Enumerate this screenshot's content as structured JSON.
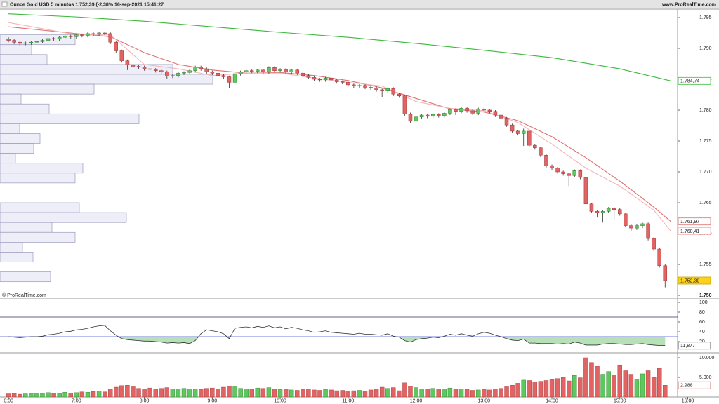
{
  "header": {
    "title": "Ounce Gold USD 5 minutos 1.752,39 (-2,38% 16-sep-2021 15:41:27",
    "site": "www.ProRealTime.com",
    "watermark": "© ProRealTime.com"
  },
  "chart_data": {
    "type": "candlestick",
    "xlim": [
      352.5,
      951
    ],
    "xticks": [
      {
        "value": 360,
        "label": "6:00"
      },
      {
        "value": 420,
        "label": "7:00"
      },
      {
        "value": 480,
        "label": "8:00"
      },
      {
        "value": 540,
        "label": "9:00"
      },
      {
        "value": 600,
        "label": "10:00"
      },
      {
        "value": 660,
        "label": "11:00"
      },
      {
        "value": 720,
        "label": "12:00"
      },
      {
        "value": 780,
        "label": "13:00"
      },
      {
        "value": 840,
        "label": "14:00"
      },
      {
        "value": 900,
        "label": "15:00"
      },
      {
        "value": 960,
        "label": "16:00"
      }
    ],
    "ylim": [
      1749.55,
      1796.25
    ],
    "yticks": [
      {
        "value": 1795,
        "label": "1.795"
      },
      {
        "value": 1790,
        "label": "1.790"
      },
      {
        "value": 1785,
        "label": "1.785"
      },
      {
        "value": 1780,
        "label": "1.780"
      },
      {
        "value": 1775,
        "label": "1.775"
      },
      {
        "value": 1770,
        "label": "1.770"
      },
      {
        "value": 1765,
        "label": "1.765"
      },
      {
        "value": 1760,
        "label": "1.760"
      },
      {
        "value": 1755,
        "label": "1.755"
      },
      {
        "value": 1750,
        "label": "1.750"
      }
    ],
    "up_color": "#5ec85e",
    "down_color": "#e06464",
    "x": [
      360,
      365,
      370,
      375,
      380,
      385,
      390,
      395,
      400,
      405,
      410,
      415,
      420,
      425,
      430,
      435,
      440,
      445,
      450,
      455,
      460,
      465,
      470,
      475,
      480,
      485,
      490,
      495,
      500,
      505,
      510,
      515,
      520,
      525,
      530,
      535,
      540,
      545,
      550,
      555,
      560,
      565,
      570,
      575,
      580,
      585,
      590,
      595,
      600,
      605,
      610,
      615,
      620,
      625,
      630,
      635,
      640,
      645,
      650,
      655,
      660,
      665,
      670,
      675,
      680,
      685,
      690,
      695,
      700,
      705,
      710,
      715,
      720,
      725,
      730,
      735,
      740,
      745,
      750,
      755,
      760,
      765,
      770,
      775,
      780,
      785,
      790,
      795,
      800,
      805,
      810,
      815,
      820,
      825,
      830,
      835,
      840,
      845,
      850,
      855,
      860,
      865,
      870,
      875,
      880,
      885,
      890,
      895,
      900,
      905,
      910,
      915,
      920,
      925,
      930,
      935,
      940
    ],
    "open": [
      1791.5,
      1791.3,
      1791.0,
      1790.8,
      1790.9,
      1791.0,
      1791.1,
      1791.3,
      1791.6,
      1791.5,
      1791.8,
      1792.0,
      1791.9,
      1792.2,
      1792.1,
      1792.4,
      1792.3,
      1792.5,
      1792.4,
      1791.0,
      1789.6,
      1788.0,
      1787.3,
      1787.1,
      1787.0,
      1786.7,
      1786.6,
      1786.4,
      1786.2,
      1785.5,
      1785.6,
      1786.0,
      1786.1,
      1786.4,
      1787.0,
      1786.7,
      1786.2,
      1786.0,
      1785.6,
      1785.4,
      1784.5,
      1785.9,
      1786.2,
      1786.4,
      1786.3,
      1786.5,
      1786.2,
      1786.9,
      1786.4,
      1786.6,
      1786.2,
      1786.5,
      1786.0,
      1785.6,
      1785.3,
      1785.0,
      1784.9,
      1785.2,
      1784.9,
      1784.6,
      1784.5,
      1784.1,
      1783.9,
      1784.0,
      1783.7,
      1783.6,
      1783.3,
      1783.1,
      1783.5,
      1782.6,
      1782.3,
      1779.4,
      1778.2,
      1778.9,
      1779.2,
      1779.0,
      1779.3,
      1779.1,
      1779.5,
      1780.1,
      1779.8,
      1780.3,
      1779.9,
      1779.5,
      1780.2,
      1780.0,
      1779.8,
      1779.2,
      1778.7,
      1777.6,
      1776.6,
      1776.2,
      1776.6,
      1774.3,
      1773.9,
      1772.7,
      1771.0,
      1770.6,
      1770.0,
      1769.7,
      1769.4,
      1770.2,
      1769.1,
      1764.8,
      1763.6,
      1763.4,
      1763.6,
      1764.1,
      1763.9,
      1763.2,
      1761.3,
      1760.9,
      1761.3,
      1761.6,
      1759.2,
      1757.5,
      1754.8
    ],
    "high": [
      1791.8,
      1791.5,
      1791.2,
      1791.1,
      1791.2,
      1791.3,
      1791.5,
      1791.8,
      1791.8,
      1792.0,
      1792.2,
      1792.2,
      1792.4,
      1792.4,
      1792.6,
      1792.6,
      1792.7,
      1792.7,
      1792.6,
      1791.2,
      1789.8,
      1788.2,
      1787.5,
      1787.3,
      1787.2,
      1786.9,
      1786.8,
      1786.6,
      1786.4,
      1785.8,
      1786.2,
      1786.3,
      1786.6,
      1787.2,
      1787.2,
      1786.9,
      1786.4,
      1786.2,
      1785.8,
      1785.6,
      1786.1,
      1786.4,
      1786.6,
      1786.6,
      1786.7,
      1786.7,
      1787.1,
      1787.1,
      1786.8,
      1786.8,
      1786.7,
      1786.7,
      1786.2,
      1785.8,
      1785.5,
      1785.2,
      1785.4,
      1785.4,
      1785.1,
      1784.8,
      1784.7,
      1784.3,
      1784.2,
      1784.2,
      1783.9,
      1783.8,
      1783.5,
      1783.7,
      1783.7,
      1782.8,
      1782.5,
      1779.6,
      1779.1,
      1779.4,
      1779.4,
      1779.5,
      1779.5,
      1779.7,
      1780.3,
      1780.3,
      1780.5,
      1780.5,
      1780.1,
      1780.4,
      1780.4,
      1780.2,
      1780.0,
      1779.4,
      1778.9,
      1777.8,
      1776.8,
      1777.0,
      1776.8,
      1774.5,
      1774.1,
      1772.9,
      1771.2,
      1770.8,
      1770.2,
      1769.9,
      1770.4,
      1770.4,
      1769.3,
      1765.0,
      1763.8,
      1763.8,
      1764.3,
      1764.3,
      1764.1,
      1763.4,
      1761.5,
      1761.5,
      1761.8,
      1761.8,
      1759.4,
      1757.7,
      1755.0
    ],
    "low": [
      1791.0,
      1790.7,
      1790.5,
      1790.5,
      1790.6,
      1790.7,
      1790.8,
      1791.0,
      1791.2,
      1791.2,
      1791.5,
      1791.6,
      1791.6,
      1791.8,
      1791.8,
      1792.0,
      1792.0,
      1792.1,
      1790.7,
      1789.3,
      1787.7,
      1786.5,
      1786.8,
      1786.7,
      1786.4,
      1786.3,
      1786.1,
      1785.9,
      1785.0,
      1785.2,
      1785.3,
      1785.7,
      1785.8,
      1786.1,
      1786.4,
      1785.9,
      1785.7,
      1785.3,
      1785.1,
      1783.6,
      1784.2,
      1785.6,
      1785.9,
      1786.0,
      1786.0,
      1785.9,
      1785.9,
      1786.1,
      1786.1,
      1785.9,
      1785.9,
      1785.7,
      1785.3,
      1785.0,
      1784.7,
      1784.6,
      1784.6,
      1784.6,
      1784.3,
      1784.2,
      1783.8,
      1783.6,
      1783.6,
      1783.4,
      1783.3,
      1783.0,
      1782.1,
      1782.8,
      1782.3,
      1782.0,
      1779.1,
      1777.9,
      1775.7,
      1778.6,
      1778.7,
      1778.7,
      1778.8,
      1778.8,
      1779.2,
      1779.2,
      1779.5,
      1779.6,
      1779.2,
      1779.2,
      1779.7,
      1779.5,
      1778.9,
      1778.4,
      1777.3,
      1776.3,
      1775.9,
      1774.2,
      1774.0,
      1773.6,
      1772.4,
      1770.7,
      1770.3,
      1769.7,
      1769.4,
      1767.7,
      1769.1,
      1768.8,
      1764.5,
      1763.3,
      1762.6,
      1761.8,
      1763.3,
      1762.3,
      1762.9,
      1761.0,
      1760.4,
      1760.6,
      1760.9,
      1758.9,
      1757.2,
      1754.5,
      1751.3
    ],
    "close": [
      1791.3,
      1791.0,
      1790.8,
      1790.9,
      1791.0,
      1791.1,
      1791.3,
      1791.6,
      1791.5,
      1791.8,
      1792.0,
      1791.9,
      1792.2,
      1792.1,
      1792.4,
      1792.3,
      1792.5,
      1792.4,
      1791.0,
      1789.6,
      1788.0,
      1787.3,
      1787.1,
      1787.0,
      1786.7,
      1786.6,
      1786.4,
      1786.2,
      1785.5,
      1785.6,
      1786.0,
      1786.1,
      1786.4,
      1787.0,
      1786.7,
      1786.2,
      1786.0,
      1785.6,
      1785.4,
      1784.5,
      1785.9,
      1786.2,
      1786.4,
      1786.3,
      1786.5,
      1786.2,
      1786.9,
      1786.4,
      1786.6,
      1786.2,
      1786.5,
      1786.0,
      1785.6,
      1785.3,
      1785.0,
      1784.9,
      1785.2,
      1784.9,
      1784.6,
      1784.5,
      1784.1,
      1783.9,
      1784.0,
      1783.7,
      1783.6,
      1783.3,
      1783.1,
      1783.5,
      1782.6,
      1782.3,
      1779.4,
      1778.2,
      1778.9,
      1779.2,
      1779.0,
      1779.3,
      1779.1,
      1779.5,
      1780.1,
      1779.8,
      1780.3,
      1779.9,
      1779.5,
      1780.2,
      1780.0,
      1779.8,
      1779.2,
      1778.7,
      1777.6,
      1776.6,
      1776.2,
      1776.6,
      1774.3,
      1773.9,
      1772.7,
      1771.0,
      1770.6,
      1770.0,
      1769.7,
      1769.4,
      1770.2,
      1769.1,
      1764.8,
      1763.6,
      1763.4,
      1763.6,
      1764.1,
      1763.9,
      1763.2,
      1761.3,
      1760.9,
      1761.3,
      1761.6,
      1759.2,
      1757.5,
      1754.8,
      1752.39
    ],
    "current": {
      "value": 1752.39,
      "label": "1.752,39"
    },
    "series": [
      {
        "color": "#3cb83c",
        "x": [
          360,
          420,
          480,
          540,
          600,
          660,
          720,
          780,
          840,
          900,
          945
        ],
        "values": [
          1795.6,
          1795.1,
          1794.4,
          1793.5,
          1792.6,
          1791.8,
          1790.8,
          1789.7,
          1788.5,
          1786.7,
          1784.74
        ],
        "last_label": "1.784,74"
      },
      {
        "color": "#e07070",
        "x": [
          360,
          420,
          450,
          480,
          510,
          540,
          570,
          600,
          630,
          660,
          690,
          720,
          750,
          780,
          810,
          840,
          870,
          900,
          930,
          945
        ],
        "values": [
          1793.5,
          1792.4,
          1791.9,
          1789.3,
          1787.4,
          1786.5,
          1786.0,
          1786.1,
          1785.6,
          1784.8,
          1783.6,
          1781.9,
          1780.2,
          1779.7,
          1778.3,
          1775.7,
          1772.3,
          1768.5,
          1764.3,
          1761.97
        ],
        "last_label": "1.761,97"
      },
      {
        "color": "#f4b4b8",
        "x": [
          360,
          420,
          450,
          480,
          510,
          540,
          570,
          600,
          630,
          660,
          690,
          720,
          750,
          780,
          810,
          840,
          870,
          900,
          930,
          945
        ],
        "values": [
          1794.2,
          1792.2,
          1792.2,
          1787.4,
          1786.7,
          1785.6,
          1786.0,
          1786.0,
          1785.2,
          1784.5,
          1783.9,
          1781.4,
          1780.3,
          1779.9,
          1778.0,
          1774.5,
          1770.6,
          1767.7,
          1763.8,
          1760.41
        ],
        "last_label": "1.760,41"
      }
    ],
    "profile": {
      "color": "#eeeef8",
      "edge_color": "#9a9abb",
      "bins": [
        1792.2,
        1790.6,
        1789.0,
        1787.4,
        1785.8,
        1784.2,
        1782.6,
        1781.0,
        1779.4,
        1777.8,
        1776.2,
        1774.6,
        1773.0,
        1771.4,
        1769.8,
        1768.2,
        1766.6,
        1765.0,
        1763.4,
        1761.8,
        1760.2,
        1758.6,
        1757.0,
        1755.4,
        1753.8,
        1752.2
      ],
      "counts": [
        107,
        45,
        67,
        246,
        303,
        134,
        30,
        70,
        198,
        28,
        57,
        48,
        22,
        118,
        107,
        0,
        0,
        113,
        180,
        74,
        107,
        32,
        47,
        0,
        72
      ]
    },
    "rsi": {
      "color": "#333333",
      "fill": "#b6e0b6",
      "ylim": [
        -1.4,
        104.3
      ],
      "yticks": [
        100,
        80,
        60,
        40,
        20
      ],
      "levels": [
        70,
        30
      ],
      "level_colors": [
        "#333366",
        "#4455cc"
      ],
      "values": [
        30,
        29,
        28,
        29,
        30,
        30,
        31,
        34,
        35,
        37,
        40,
        41,
        44,
        45,
        47,
        50,
        52,
        53,
        42,
        33,
        26,
        24,
        23,
        22,
        21,
        21,
        20,
        19,
        17,
        18,
        17,
        18,
        16,
        22,
        36,
        44,
        42,
        40,
        36,
        26,
        47,
        49,
        50,
        48,
        51,
        49,
        52,
        48,
        50,
        46,
        49,
        47,
        44,
        42,
        39,
        40,
        42,
        39,
        38,
        37,
        36,
        35,
        37,
        35,
        35,
        34,
        33,
        36,
        31,
        29,
        22,
        19,
        24,
        26,
        27,
        29,
        28,
        31,
        35,
        33,
        36,
        33,
        31,
        36,
        39,
        37,
        33,
        30,
        26,
        23,
        22,
        25,
        17,
        17,
        16,
        16,
        16,
        15,
        16,
        15,
        19,
        17,
        13,
        13,
        13,
        15,
        16,
        16,
        15,
        14,
        14,
        15,
        16,
        14,
        13,
        12,
        11.877
      ],
      "last_label": "11,877"
    },
    "volume": {
      "ylim": [
        0,
        11070
      ],
      "yticks": [
        {
          "value": 10000,
          "label": "10.000"
        },
        {
          "value": 5000,
          "label": "5.000"
        }
      ],
      "values": [
        800,
        900,
        700,
        800,
        900,
        1000,
        900,
        1100,
        1000,
        900,
        1200,
        1000,
        1100,
        1300,
        1200,
        1400,
        1500,
        1300,
        2000,
        2500,
        2900,
        3000,
        2600,
        2200,
        2100,
        2300,
        2000,
        2200,
        2400,
        2000,
        2100,
        2200,
        2100,
        2000,
        1900,
        2200,
        2300,
        2000,
        2500,
        2700,
        2600,
        2200,
        2100,
        2000,
        2300,
        2200,
        2400,
        2100,
        1900,
        2000,
        1800,
        1700,
        1900,
        2000,
        1800,
        1700,
        1900,
        1800,
        1600,
        1700,
        1500,
        1600,
        1700,
        1500,
        1800,
        2000,
        2500,
        2200,
        2400,
        1600,
        3600,
        2700,
        2400,
        2000,
        2100,
        2200,
        2000,
        2100,
        2300,
        2100,
        2000,
        1900,
        1700,
        1800,
        1900,
        1800,
        2100,
        2200,
        2600,
        3000,
        3500,
        4300,
        4200,
        3800,
        4000,
        4200,
        4400,
        4700,
        5000,
        4100,
        5500,
        4900,
        10000,
        8800,
        7800,
        5800,
        6500,
        5600,
        8000,
        6700,
        5800,
        4500,
        5900,
        6700,
        5000,
        7300,
        2988
      ],
      "last_label": "2.988"
    }
  }
}
